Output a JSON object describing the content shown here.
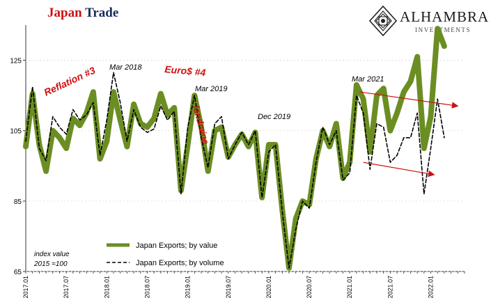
{
  "header": {
    "title_part1": "Japan",
    "title_part2": "Trade",
    "title_color1": "#d01010",
    "title_color2": "#1a2b5c"
  },
  "logo": {
    "name": "ALHAMBRA",
    "sub": "INVESTMENTS",
    "icon": "geometric-star-diamond-icon"
  },
  "chart_data": {
    "type": "line",
    "ylim": [
      65,
      135
    ],
    "yticks": [
      65,
      85,
      105,
      125
    ],
    "xlim": [
      0,
      65
    ],
    "xticks": [
      {
        "i": 0,
        "label": "2017.01"
      },
      {
        "i": 6,
        "label": "2017.07"
      },
      {
        "i": 12,
        "label": "2018.01"
      },
      {
        "i": 18,
        "label": "2018.07"
      },
      {
        "i": 24,
        "label": "2019.01"
      },
      {
        "i": 30,
        "label": "2019.07"
      },
      {
        "i": 36,
        "label": "2020.01"
      },
      {
        "i": 42,
        "label": "2020.07"
      },
      {
        "i": 48,
        "label": "2021.01"
      },
      {
        "i": 54,
        "label": "2021.07"
      },
      {
        "i": 60,
        "label": "2022.01"
      }
    ],
    "grid": false,
    "series": [
      {
        "name": "Japan Exports; by value",
        "color": "#6b8e23",
        "style": "solid-thick",
        "values": [
          100.5,
          115.5,
          101,
          93.5,
          105,
          103,
          100,
          108.5,
          106.5,
          110,
          116,
          97,
          102,
          116,
          108,
          100.5,
          112.5,
          107,
          106,
          108.5,
          115.5,
          109.5,
          111.5,
          88,
          101,
          115,
          106,
          93.5,
          105,
          106,
          97.5,
          101,
          104,
          100.5,
          104.5,
          86,
          101,
          101,
          82.5,
          66,
          80,
          85,
          84,
          97,
          105,
          100.5,
          107,
          91.5,
          96,
          118,
          114,
          99,
          115,
          117,
          105,
          110,
          116,
          119,
          126,
          100,
          109,
          134,
          129
        ]
      },
      {
        "name": "Japan Exports; by volume",
        "color": "#000000",
        "style": "dashed",
        "values": [
          102,
          117.5,
          100,
          96.5,
          109,
          106,
          104,
          111,
          108,
          109.5,
          113,
          98,
          108,
          121.5,
          113,
          102,
          111,
          106,
          104.5,
          105.5,
          112,
          108,
          110.5,
          87,
          106,
          115,
          103,
          94.5,
          107,
          109,
          97,
          101,
          104.5,
          101,
          105,
          86,
          99,
          101,
          82,
          66,
          77,
          85,
          83,
          96,
          106,
          101,
          105,
          91,
          93,
          115,
          110,
          94,
          107,
          106,
          96,
          98,
          103,
          103,
          110,
          87,
          100,
          114,
          103
        ]
      }
    ],
    "legend": {
      "placement": "bottom-left",
      "labels": [
        "Japan Exports; by value",
        "Japan Exports; by volume"
      ]
    },
    "annotations": [
      {
        "text": "Reflation #3",
        "color": "#d01010",
        "style": "bold-italic-rotated"
      },
      {
        "text": "Euro$ #4",
        "color": "#d01010",
        "style": "bold-italic"
      },
      {
        "text": "landmine",
        "color": "#d01010",
        "style": "bold-italic-vertical"
      },
      {
        "text": "Mar 2018",
        "color": "#000000",
        "style": "italic"
      },
      {
        "text": "Mar 2019",
        "color": "#000000",
        "style": "italic"
      },
      {
        "text": "Dec 2019",
        "color": "#000000",
        "style": "italic"
      },
      {
        "text": "Mar 2021",
        "color": "#000000",
        "style": "italic"
      }
    ],
    "note_line1": "index value",
    "note_line2": "2015 =100",
    "trend_arrows": [
      {
        "from": [
          49.5,
          116
        ],
        "to": [
          64,
          112
        ],
        "color": "#cc1111"
      },
      {
        "from": [
          50,
          96
        ],
        "to": [
          60.5,
          92.5
        ],
        "color": "#cc1111"
      }
    ]
  }
}
